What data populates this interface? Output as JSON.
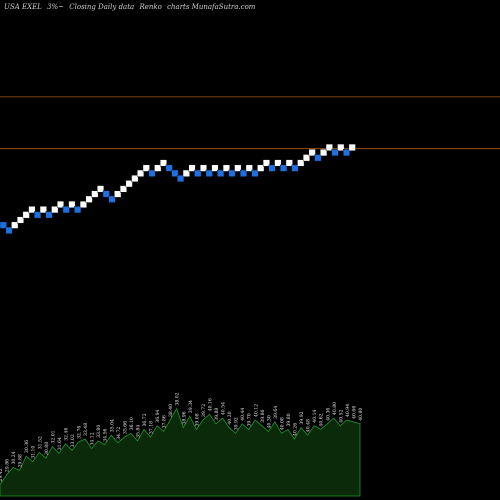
{
  "header": {
    "symbol": "USA EXEL",
    "change": "3%~",
    "mode": "Closing Daily data",
    "chart_kind": "Renko",
    "source": "charts MunafaSutra.com"
  },
  "colors": {
    "background": "#000000",
    "up_brick": "#ffffff",
    "down_brick": "#1e6fe0",
    "reference_line": "#b05a1e",
    "volume_fill": "#0a2a0a",
    "volume_stroke": "#1a9a2a",
    "label": "#e6e6e6"
  },
  "chart_data": {
    "type": "renko",
    "reference_lines": [
      {
        "name": "upper",
        "value": 44.5
      },
      {
        "name": "lower",
        "value": 40.5
      }
    ],
    "bricks": [
      {
        "value": 34.6,
        "dir": "down"
      },
      {
        "value": 34.2,
        "dir": "down"
      },
      {
        "value": 34.6,
        "dir": "up"
      },
      {
        "value": 35.0,
        "dir": "up"
      },
      {
        "value": 35.4,
        "dir": "up"
      },
      {
        "value": 35.8,
        "dir": "up"
      },
      {
        "value": 35.4,
        "dir": "down"
      },
      {
        "value": 35.8,
        "dir": "up"
      },
      {
        "value": 35.4,
        "dir": "down"
      },
      {
        "value": 35.8,
        "dir": "up"
      },
      {
        "value": 36.2,
        "dir": "up"
      },
      {
        "value": 35.8,
        "dir": "down"
      },
      {
        "value": 36.2,
        "dir": "up"
      },
      {
        "value": 35.8,
        "dir": "down"
      },
      {
        "value": 36.2,
        "dir": "up"
      },
      {
        "value": 36.6,
        "dir": "up"
      },
      {
        "value": 37.0,
        "dir": "up"
      },
      {
        "value": 37.4,
        "dir": "up"
      },
      {
        "value": 37.0,
        "dir": "down"
      },
      {
        "value": 36.6,
        "dir": "down"
      },
      {
        "value": 37.0,
        "dir": "up"
      },
      {
        "value": 37.4,
        "dir": "up"
      },
      {
        "value": 37.8,
        "dir": "up"
      },
      {
        "value": 38.2,
        "dir": "up"
      },
      {
        "value": 38.6,
        "dir": "up"
      },
      {
        "value": 39.0,
        "dir": "up"
      },
      {
        "value": 38.6,
        "dir": "down"
      },
      {
        "value": 39.0,
        "dir": "up"
      },
      {
        "value": 39.4,
        "dir": "up"
      },
      {
        "value": 39.0,
        "dir": "down"
      },
      {
        "value": 38.6,
        "dir": "down"
      },
      {
        "value": 38.2,
        "dir": "down"
      },
      {
        "value": 38.6,
        "dir": "up"
      },
      {
        "value": 39.0,
        "dir": "up"
      },
      {
        "value": 38.6,
        "dir": "down"
      },
      {
        "value": 39.0,
        "dir": "up"
      },
      {
        "value": 38.6,
        "dir": "down"
      },
      {
        "value": 39.0,
        "dir": "up"
      },
      {
        "value": 38.6,
        "dir": "down"
      },
      {
        "value": 39.0,
        "dir": "up"
      },
      {
        "value": 38.6,
        "dir": "down"
      },
      {
        "value": 39.0,
        "dir": "up"
      },
      {
        "value": 38.6,
        "dir": "down"
      },
      {
        "value": 39.0,
        "dir": "up"
      },
      {
        "value": 38.6,
        "dir": "down"
      },
      {
        "value": 39.0,
        "dir": "up"
      },
      {
        "value": 39.4,
        "dir": "up"
      },
      {
        "value": 39.0,
        "dir": "down"
      },
      {
        "value": 39.4,
        "dir": "up"
      },
      {
        "value": 39.0,
        "dir": "down"
      },
      {
        "value": 39.4,
        "dir": "up"
      },
      {
        "value": 39.0,
        "dir": "down"
      },
      {
        "value": 39.4,
        "dir": "up"
      },
      {
        "value": 39.8,
        "dir": "up"
      },
      {
        "value": 40.2,
        "dir": "up"
      },
      {
        "value": 39.8,
        "dir": "down"
      },
      {
        "value": 40.2,
        "dir": "up"
      },
      {
        "value": 40.6,
        "dir": "up"
      },
      {
        "value": 40.2,
        "dir": "down"
      },
      {
        "value": 40.6,
        "dir": "up"
      },
      {
        "value": 40.2,
        "dir": "down"
      },
      {
        "value": 40.6,
        "dir": "up"
      }
    ],
    "ylim": [
      29.6,
      45.8
    ],
    "volume": [
      0.12,
      0.22,
      0.3,
      0.27,
      0.42,
      0.36,
      0.46,
      0.4,
      0.52,
      0.45,
      0.55,
      0.48,
      0.57,
      0.6,
      0.5,
      0.58,
      0.54,
      0.64,
      0.56,
      0.62,
      0.66,
      0.58,
      0.7,
      0.62,
      0.74,
      0.68,
      0.8,
      0.92,
      0.72,
      0.84,
      0.7,
      0.8,
      0.86,
      0.76,
      0.82,
      0.72,
      0.66,
      0.76,
      0.7,
      0.8,
      0.74,
      0.68,
      0.78,
      0.66,
      0.7,
      0.6,
      0.72,
      0.64,
      0.74,
      0.7,
      0.76,
      0.82,
      0.74,
      0.8,
      0.78,
      0.76
    ],
    "volume_labels": [
      "29.42",
      "29.86",
      "30.24",
      "29.88",
      "30.36",
      "31.10",
      "31.52",
      "30.88",
      "32.01",
      "31.64",
      "32.46",
      "33.02",
      "32.76",
      "33.48",
      "34.12",
      "33.80",
      "34.56",
      "35.04",
      "34.72",
      "35.66",
      "36.10",
      "35.84",
      "36.72",
      "37.18",
      "36.94",
      "37.86",
      "38.40",
      "38.02",
      "38.96",
      "39.34",
      "39.08",
      "39.72",
      "40.16",
      "39.88",
      "40.54",
      "40.20",
      "39.92",
      "40.44",
      "39.70",
      "40.12",
      "39.86",
      "40.30",
      "39.64",
      "40.08",
      "39.80",
      "40.26",
      "39.92",
      "40.48",
      "40.14",
      "40.62",
      "40.36",
      "40.80",
      "40.52",
      "40.94",
      "40.66",
      "40.80"
    ]
  }
}
